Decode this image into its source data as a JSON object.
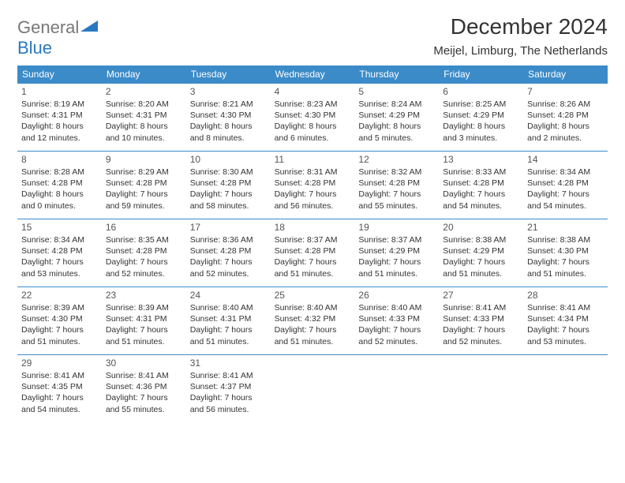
{
  "logo": {
    "text_gray": "General",
    "text_blue": "Blue"
  },
  "title": "December 2024",
  "location": "Meijel, Limburg, The Netherlands",
  "colors": {
    "header_bg": "#3b8bc9",
    "header_text": "#ffffff",
    "border": "#3b8bc9",
    "text": "#333333",
    "logo_gray": "#777777",
    "logo_blue": "#2b78c2",
    "background": "#ffffff"
  },
  "day_names": [
    "Sunday",
    "Monday",
    "Tuesday",
    "Wednesday",
    "Thursday",
    "Friday",
    "Saturday"
  ],
  "days": [
    {
      "n": "1",
      "sunrise": "Sunrise: 8:19 AM",
      "sunset": "Sunset: 4:31 PM",
      "day1": "Daylight: 8 hours",
      "day2": "and 12 minutes."
    },
    {
      "n": "2",
      "sunrise": "Sunrise: 8:20 AM",
      "sunset": "Sunset: 4:31 PM",
      "day1": "Daylight: 8 hours",
      "day2": "and 10 minutes."
    },
    {
      "n": "3",
      "sunrise": "Sunrise: 8:21 AM",
      "sunset": "Sunset: 4:30 PM",
      "day1": "Daylight: 8 hours",
      "day2": "and 8 minutes."
    },
    {
      "n": "4",
      "sunrise": "Sunrise: 8:23 AM",
      "sunset": "Sunset: 4:30 PM",
      "day1": "Daylight: 8 hours",
      "day2": "and 6 minutes."
    },
    {
      "n": "5",
      "sunrise": "Sunrise: 8:24 AM",
      "sunset": "Sunset: 4:29 PM",
      "day1": "Daylight: 8 hours",
      "day2": "and 5 minutes."
    },
    {
      "n": "6",
      "sunrise": "Sunrise: 8:25 AM",
      "sunset": "Sunset: 4:29 PM",
      "day1": "Daylight: 8 hours",
      "day2": "and 3 minutes."
    },
    {
      "n": "7",
      "sunrise": "Sunrise: 8:26 AM",
      "sunset": "Sunset: 4:28 PM",
      "day1": "Daylight: 8 hours",
      "day2": "and 2 minutes."
    },
    {
      "n": "8",
      "sunrise": "Sunrise: 8:28 AM",
      "sunset": "Sunset: 4:28 PM",
      "day1": "Daylight: 8 hours",
      "day2": "and 0 minutes."
    },
    {
      "n": "9",
      "sunrise": "Sunrise: 8:29 AM",
      "sunset": "Sunset: 4:28 PM",
      "day1": "Daylight: 7 hours",
      "day2": "and 59 minutes."
    },
    {
      "n": "10",
      "sunrise": "Sunrise: 8:30 AM",
      "sunset": "Sunset: 4:28 PM",
      "day1": "Daylight: 7 hours",
      "day2": "and 58 minutes."
    },
    {
      "n": "11",
      "sunrise": "Sunrise: 8:31 AM",
      "sunset": "Sunset: 4:28 PM",
      "day1": "Daylight: 7 hours",
      "day2": "and 56 minutes."
    },
    {
      "n": "12",
      "sunrise": "Sunrise: 8:32 AM",
      "sunset": "Sunset: 4:28 PM",
      "day1": "Daylight: 7 hours",
      "day2": "and 55 minutes."
    },
    {
      "n": "13",
      "sunrise": "Sunrise: 8:33 AM",
      "sunset": "Sunset: 4:28 PM",
      "day1": "Daylight: 7 hours",
      "day2": "and 54 minutes."
    },
    {
      "n": "14",
      "sunrise": "Sunrise: 8:34 AM",
      "sunset": "Sunset: 4:28 PM",
      "day1": "Daylight: 7 hours",
      "day2": "and 54 minutes."
    },
    {
      "n": "15",
      "sunrise": "Sunrise: 8:34 AM",
      "sunset": "Sunset: 4:28 PM",
      "day1": "Daylight: 7 hours",
      "day2": "and 53 minutes."
    },
    {
      "n": "16",
      "sunrise": "Sunrise: 8:35 AM",
      "sunset": "Sunset: 4:28 PM",
      "day1": "Daylight: 7 hours",
      "day2": "and 52 minutes."
    },
    {
      "n": "17",
      "sunrise": "Sunrise: 8:36 AM",
      "sunset": "Sunset: 4:28 PM",
      "day1": "Daylight: 7 hours",
      "day2": "and 52 minutes."
    },
    {
      "n": "18",
      "sunrise": "Sunrise: 8:37 AM",
      "sunset": "Sunset: 4:28 PM",
      "day1": "Daylight: 7 hours",
      "day2": "and 51 minutes."
    },
    {
      "n": "19",
      "sunrise": "Sunrise: 8:37 AM",
      "sunset": "Sunset: 4:29 PM",
      "day1": "Daylight: 7 hours",
      "day2": "and 51 minutes."
    },
    {
      "n": "20",
      "sunrise": "Sunrise: 8:38 AM",
      "sunset": "Sunset: 4:29 PM",
      "day1": "Daylight: 7 hours",
      "day2": "and 51 minutes."
    },
    {
      "n": "21",
      "sunrise": "Sunrise: 8:38 AM",
      "sunset": "Sunset: 4:30 PM",
      "day1": "Daylight: 7 hours",
      "day2": "and 51 minutes."
    },
    {
      "n": "22",
      "sunrise": "Sunrise: 8:39 AM",
      "sunset": "Sunset: 4:30 PM",
      "day1": "Daylight: 7 hours",
      "day2": "and 51 minutes."
    },
    {
      "n": "23",
      "sunrise": "Sunrise: 8:39 AM",
      "sunset": "Sunset: 4:31 PM",
      "day1": "Daylight: 7 hours",
      "day2": "and 51 minutes."
    },
    {
      "n": "24",
      "sunrise": "Sunrise: 8:40 AM",
      "sunset": "Sunset: 4:31 PM",
      "day1": "Daylight: 7 hours",
      "day2": "and 51 minutes."
    },
    {
      "n": "25",
      "sunrise": "Sunrise: 8:40 AM",
      "sunset": "Sunset: 4:32 PM",
      "day1": "Daylight: 7 hours",
      "day2": "and 51 minutes."
    },
    {
      "n": "26",
      "sunrise": "Sunrise: 8:40 AM",
      "sunset": "Sunset: 4:33 PM",
      "day1": "Daylight: 7 hours",
      "day2": "and 52 minutes."
    },
    {
      "n": "27",
      "sunrise": "Sunrise: 8:41 AM",
      "sunset": "Sunset: 4:33 PM",
      "day1": "Daylight: 7 hours",
      "day2": "and 52 minutes."
    },
    {
      "n": "28",
      "sunrise": "Sunrise: 8:41 AM",
      "sunset": "Sunset: 4:34 PM",
      "day1": "Daylight: 7 hours",
      "day2": "and 53 minutes."
    },
    {
      "n": "29",
      "sunrise": "Sunrise: 8:41 AM",
      "sunset": "Sunset: 4:35 PM",
      "day1": "Daylight: 7 hours",
      "day2": "and 54 minutes."
    },
    {
      "n": "30",
      "sunrise": "Sunrise: 8:41 AM",
      "sunset": "Sunset: 4:36 PM",
      "day1": "Daylight: 7 hours",
      "day2": "and 55 minutes."
    },
    {
      "n": "31",
      "sunrise": "Sunrise: 8:41 AM",
      "sunset": "Sunset: 4:37 PM",
      "day1": "Daylight: 7 hours",
      "day2": "and 56 minutes."
    }
  ]
}
